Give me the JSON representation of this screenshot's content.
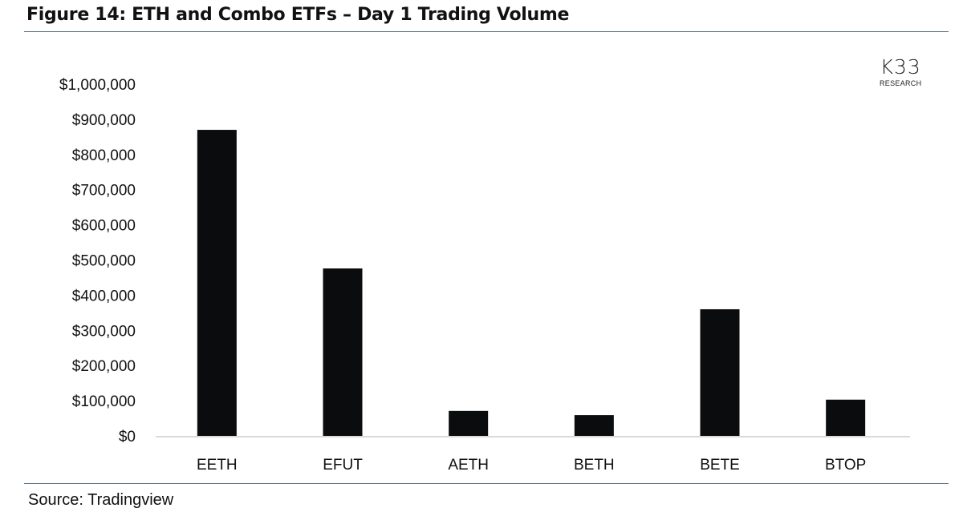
{
  "header": {
    "title": "Figure 14: ETH and Combo ETFs – Day 1 Trading Volume"
  },
  "footer": {
    "source": "Source: Tradingview"
  },
  "logo": {
    "text": "K33",
    "subtext": "RESEARCH"
  },
  "chart_data": {
    "type": "bar",
    "title": "Figure 14: ETH and Combo ETFs – Day 1 Trading Volume",
    "xlabel": "",
    "ylabel": "",
    "categories": [
      "EETH",
      "EFUT",
      "AETH",
      "BETH",
      "BETE",
      "BTOP"
    ],
    "values": [
      870000,
      476000,
      71000,
      59000,
      360000,
      103000
    ],
    "ylim": [
      0,
      1000000
    ],
    "yticks": [
      0,
      100000,
      200000,
      300000,
      400000,
      500000,
      600000,
      700000,
      800000,
      900000,
      1000000
    ],
    "ytick_labels": [
      "$0",
      "$100,000",
      "$200,000",
      "$300,000",
      "$400,000",
      "$500,000",
      "$600,000",
      "$700,000",
      "$800,000",
      "$900,000",
      "$1,000,000"
    ],
    "grid": false,
    "bar_color": "#0b0c0e",
    "axis_color": "#d9d9d9"
  }
}
